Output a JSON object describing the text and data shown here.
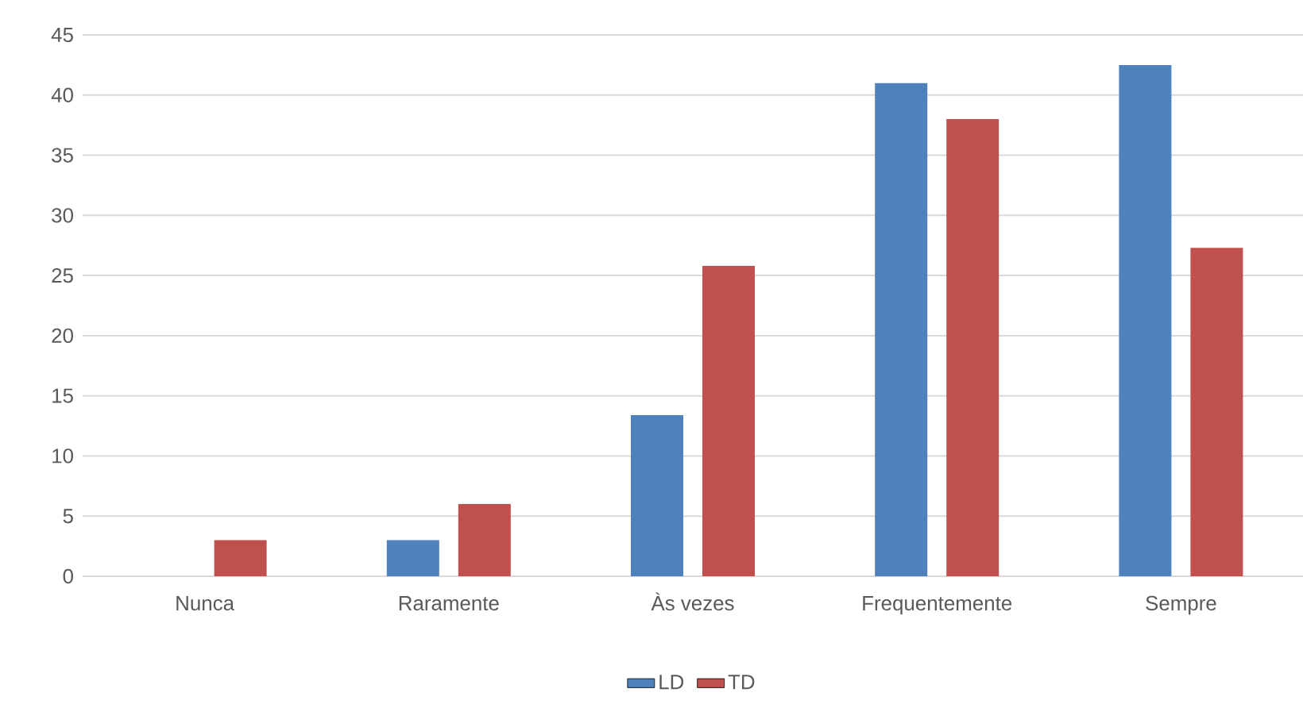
{
  "chart_data": {
    "type": "bar",
    "categories": [
      "Nunca",
      "Raramente",
      "Às vezes",
      "Frequentemente",
      "Sempre"
    ],
    "series": [
      {
        "name": "LD",
        "color": "#4f81bd",
        "values": [
          0,
          3.0,
          13.4,
          41.0,
          42.5
        ]
      },
      {
        "name": "TD",
        "color": "#c0504d",
        "values": [
          3.0,
          6.0,
          25.8,
          38.0,
          27.3
        ]
      }
    ],
    "ylim": [
      0,
      45
    ],
    "yticks": [
      0,
      5,
      10,
      15,
      20,
      25,
      30,
      35,
      40,
      45
    ],
    "grid": "y",
    "legend": "bottom"
  }
}
